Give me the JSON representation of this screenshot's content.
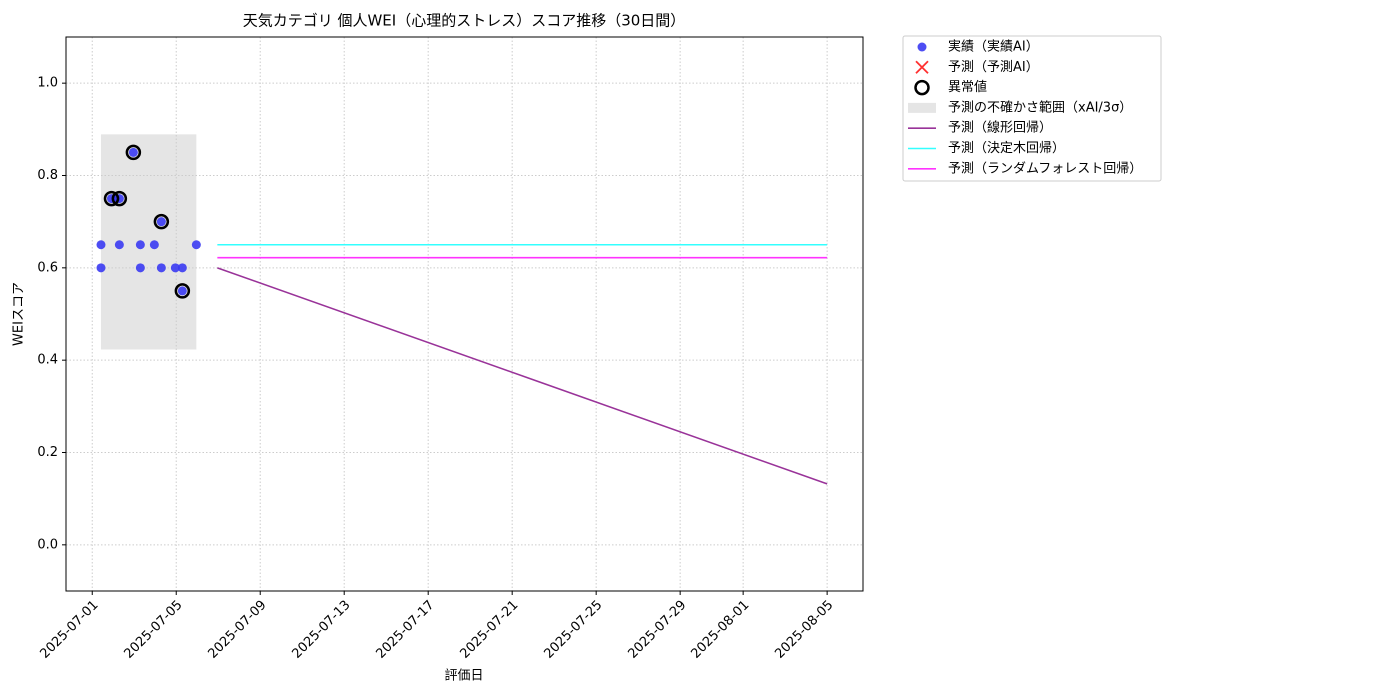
{
  "chart_data": {
    "type": "scatter",
    "title": "天気カテゴリ 個人WEI（心理的ストレス）スコア推移（30日間）",
    "x_label": "評価日",
    "y_label": "WEIスコア",
    "xlim": [
      "2025-06-29T18:00",
      "2025-08-06T17:00"
    ],
    "xticks": [
      "2025-07-01",
      "2025-07-05",
      "2025-07-09",
      "2025-07-13",
      "2025-07-17",
      "2025-07-21",
      "2025-07-25",
      "2025-07-29",
      "2025-08-01",
      "2025-08-05"
    ],
    "ylim": [
      -0.1,
      1.1
    ],
    "yticks": [
      {
        "value": 0,
        "label": "0.0"
      },
      {
        "value": 0.2,
        "label": "0.2"
      },
      {
        "value": 0.4,
        "label": "0.4"
      },
      {
        "value": 0.6,
        "label": "0.6"
      },
      {
        "value": 0.8,
        "label": "0.8"
      },
      {
        "value": 1,
        "label": "1.0"
      }
    ],
    "grid": true,
    "legend": "outside-upper-right",
    "series": [
      {
        "name": "実績（実績AI）",
        "type": "scatter",
        "marker": "circle",
        "color": "#3a3af2",
        "x": [
          "2025-07-01T10:00",
          "2025-07-01T10:00",
          "2025-07-01T22:00",
          "2025-07-02T03:00",
          "2025-07-02T07:00",
          "2025-07-02T07:00",
          "2025-07-02T23:00",
          "2025-07-03T07:00",
          "2025-07-03T07:00",
          "2025-07-03T23:00",
          "2025-07-04T07:00",
          "2025-07-04T07:00",
          "2025-07-04T23:00",
          "2025-07-05T07:00",
          "2025-07-05T07:00",
          "2025-07-05T23:00"
        ],
        "values": [
          0.65,
          0.6,
          0.75,
          0.75,
          0.65,
          0.75,
          0.85,
          0.65,
          0.6,
          0.65,
          0.7,
          0.6,
          0.6,
          0.6,
          0.55,
          0.65
        ]
      },
      {
        "name": "予測（予測AI）",
        "type": "scatter",
        "marker": "x",
        "color": "#ff3030",
        "x": [],
        "values": []
      },
      {
        "name": "異常値",
        "type": "scatter",
        "marker": "ring",
        "color": "#000000",
        "x": [
          "2025-07-01T22:00",
          "2025-07-02T07:00",
          "2025-07-02T23:00",
          "2025-07-04T07:00",
          "2025-07-05T07:00"
        ],
        "values": [
          0.75,
          0.75,
          0.85,
          0.7,
          0.55
        ]
      },
      {
        "name": "予測の不確かさ範囲（xAI/3σ）",
        "type": "band",
        "color": "#cccccc",
        "x": [
          "2025-07-01T10:00",
          "2025-07-05T23:00"
        ],
        "lower": [
          0.423,
          0.423
        ],
        "upper": [
          0.889,
          0.889
        ]
      },
      {
        "name": "予測（線形回帰）",
        "type": "line",
        "color": "#993399",
        "x": [
          "2025-07-06T23:00",
          "2025-08-05T00:00"
        ],
        "values": [
          0.6,
          0.132
        ]
      },
      {
        "name": "予測（決定木回帰）",
        "type": "line",
        "color": "#33ffff",
        "x": [
          "2025-07-06T23:00",
          "2025-08-05T00:00"
        ],
        "values": [
          0.65,
          0.65
        ]
      },
      {
        "name": "予測（ランダムフォレスト回帰）",
        "type": "line",
        "color": "#ff33ff",
        "x": [
          "2025-07-06T23:00",
          "2025-08-05T00:00"
        ],
        "values": [
          0.622,
          0.622
        ]
      }
    ]
  }
}
